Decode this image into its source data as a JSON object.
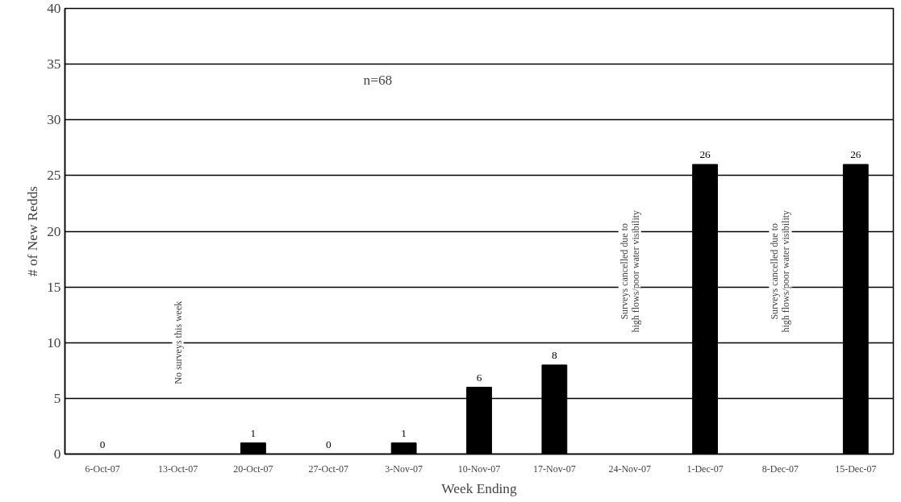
{
  "chart_data": {
    "type": "bar",
    "xlabel": "Week Ending",
    "ylabel": "# of New Redds",
    "categories": [
      "6-Oct-07",
      "13-Oct-07",
      "20-Oct-07",
      "27-Oct-07",
      "3-Nov-07",
      "10-Nov-07",
      "17-Nov-07",
      "24-Nov-07",
      "1-Dec-07",
      "8-Dec-07",
      "15-Dec-07"
    ],
    "values": [
      0,
      null,
      1,
      0,
      1,
      6,
      8,
      null,
      26,
      null,
      26
    ],
    "color": "#000000",
    "ylim": [
      0,
      40
    ],
    "yticks": [
      0,
      5,
      10,
      15,
      20,
      25,
      30,
      35,
      40
    ],
    "grid": "y",
    "data_labels": true,
    "annotations": [
      "n=68",
      "No surveys this week",
      "Surveys cancelled due to\nhigh flows/poor water visibility",
      "Surveys cancelled due to\nhigh flows/poor water visibility"
    ]
  }
}
